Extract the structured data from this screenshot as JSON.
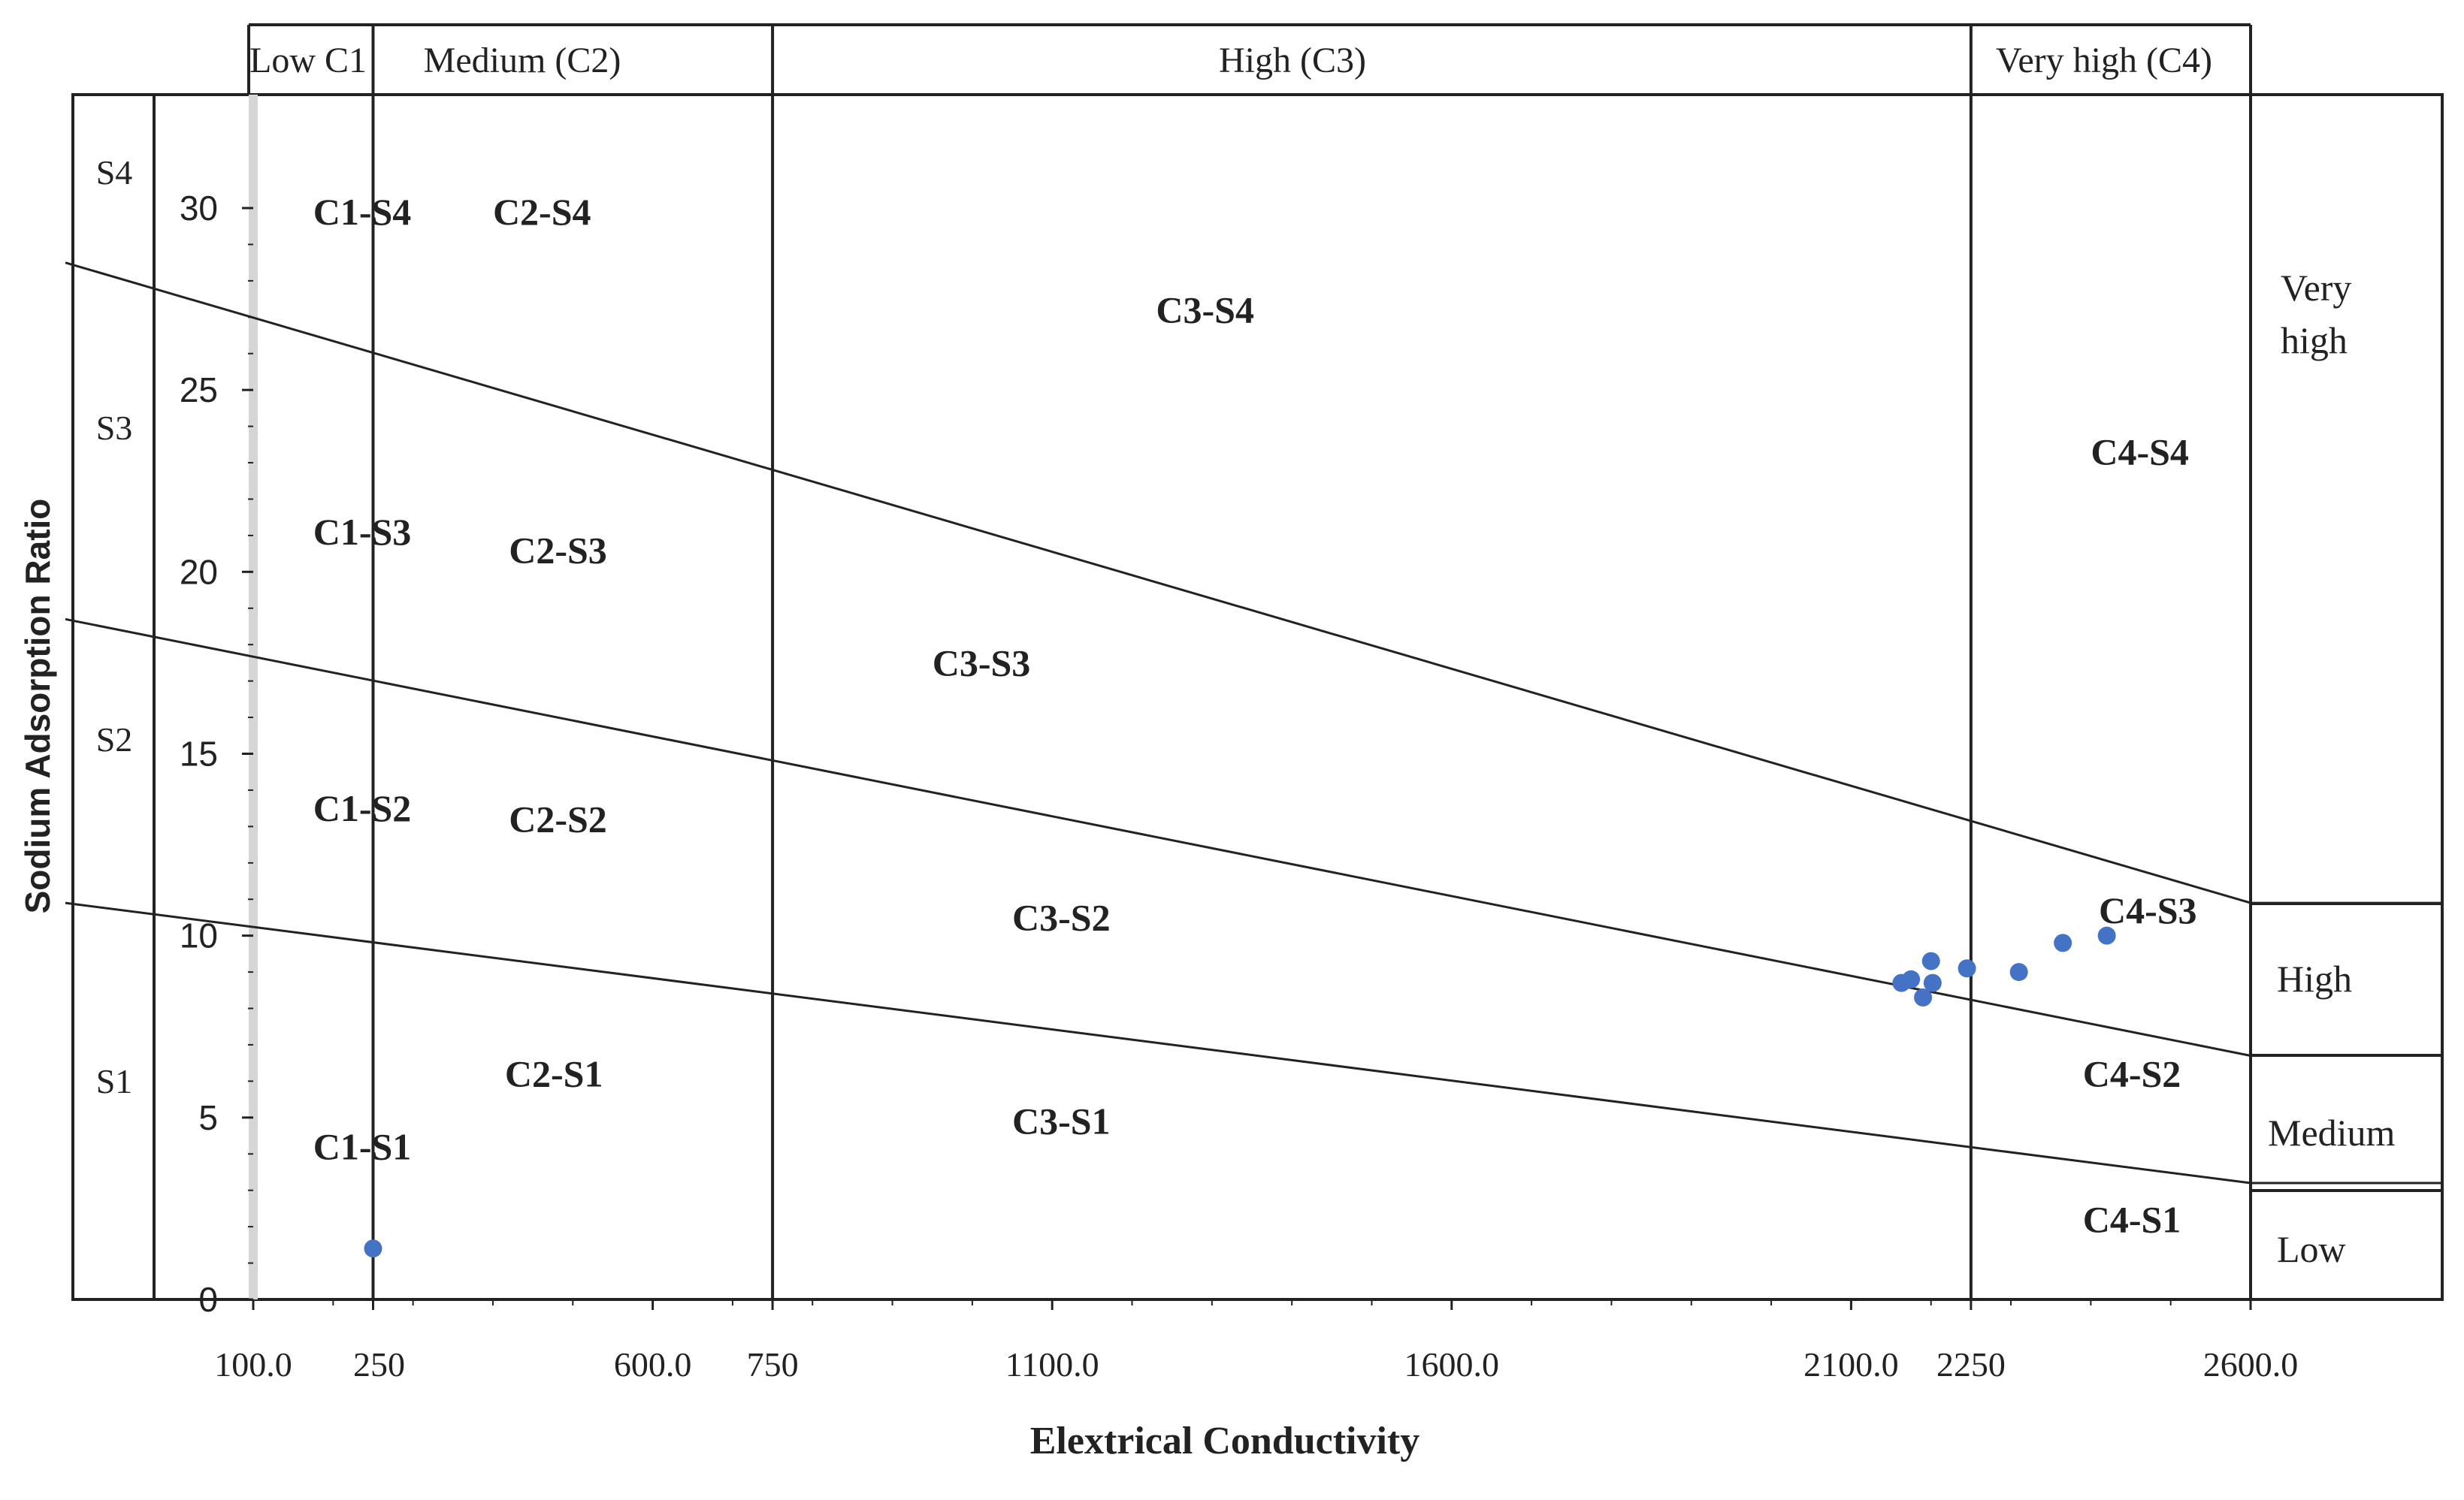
{
  "chart_data": {
    "type": "scatter",
    "title": "",
    "xlabel": "Elextrical Conductivity",
    "ylabel": "Sodium Adsorption Ratio",
    "x_ticks": [
      "100.0",
      "250",
      "600.0",
      "750",
      "1100.0",
      "1600.0",
      "2100.0",
      "2250",
      "2600.0"
    ],
    "x_tick_values": [
      100,
      250,
      600,
      750,
      1100,
      1600,
      2100,
      2250,
      2600
    ],
    "y_ticks": [
      "0",
      "5",
      "10",
      "15",
      "20",
      "25",
      "30"
    ],
    "y_tick_values": [
      0,
      5,
      10,
      15,
      20,
      25,
      30
    ],
    "xlim": [
      100,
      2600
    ],
    "ylim": [
      0,
      30
    ],
    "grid": false,
    "conductivity_classes": [
      {
        "label": "Low C1",
        "from": 100,
        "to": 250
      },
      {
        "label": "Medium (C2)",
        "from": 250,
        "to": 750
      },
      {
        "label": "High (C3)",
        "from": 750,
        "to": 2250
      },
      {
        "label": "Very high (C4)",
        "from": 2250,
        "to": 2600
      }
    ],
    "sodium_hazard_left": [
      "S4",
      "S3",
      "S2",
      "S1"
    ],
    "sodium_hazard_right": [
      "Very high",
      "High",
      "Medium",
      "Low"
    ],
    "boundary_lines": [
      {
        "name": "S3/S4",
        "points": [
          [
            0,
            28.5
          ],
          [
            2600,
            10.9
          ]
        ]
      },
      {
        "name": "S2/S3",
        "points": [
          [
            0,
            18.7
          ],
          [
            2600,
            6.7
          ]
        ]
      },
      {
        "name": "S1/S2",
        "points": [
          [
            0,
            10.9
          ],
          [
            2600,
            3.2
          ]
        ]
      }
    ],
    "region_labels": [
      {
        "text": "C1-S4",
        "x": 175,
        "y": 29.9
      },
      {
        "text": "C2-S4",
        "x": 400,
        "y": 29.9
      },
      {
        "text": "C3-S4",
        "x": 1230,
        "y": 27.2
      },
      {
        "text": "C4-S4",
        "x": 2400,
        "y": 23.3
      },
      {
        "text": "C1-S3",
        "x": 175,
        "y": 21.1
      },
      {
        "text": "C2-S3",
        "x": 420,
        "y": 20.6
      },
      {
        "text": "C3-S3",
        "x": 950,
        "y": 17.5
      },
      {
        "text": "C4-S3",
        "x": 2410,
        "y": 10.7
      },
      {
        "text": "C1-S2",
        "x": 175,
        "y": 13.5
      },
      {
        "text": "C2-S2",
        "x": 420,
        "y": 13.2
      },
      {
        "text": "C3-S2",
        "x": 1050,
        "y": 10.5
      },
      {
        "text": "C4-S2",
        "x": 2390,
        "y": 6.2
      },
      {
        "text": "C2-S1",
        "x": 415,
        "y": 6.2
      },
      {
        "text": "C3-S1",
        "x": 1050,
        "y": 4.9
      },
      {
        "text": "C1-S1",
        "x": 175,
        "y": 4.2
      },
      {
        "text": "C4-S1",
        "x": 2390,
        "y": 2.2
      }
    ],
    "points": [
      {
        "x": 250,
        "y": 1.4
      },
      {
        "x": 2163,
        "y": 8.7
      },
      {
        "x": 2175,
        "y": 8.8
      },
      {
        "x": 2190,
        "y": 8.3
      },
      {
        "x": 2200,
        "y": 9.3
      },
      {
        "x": 2202,
        "y": 8.7
      },
      {
        "x": 2245,
        "y": 9.1
      },
      {
        "x": 2310,
        "y": 9.0
      },
      {
        "x": 2365,
        "y": 9.8
      },
      {
        "x": 2420,
        "y": 10.0
      }
    ],
    "point_color": "#4472c4"
  }
}
